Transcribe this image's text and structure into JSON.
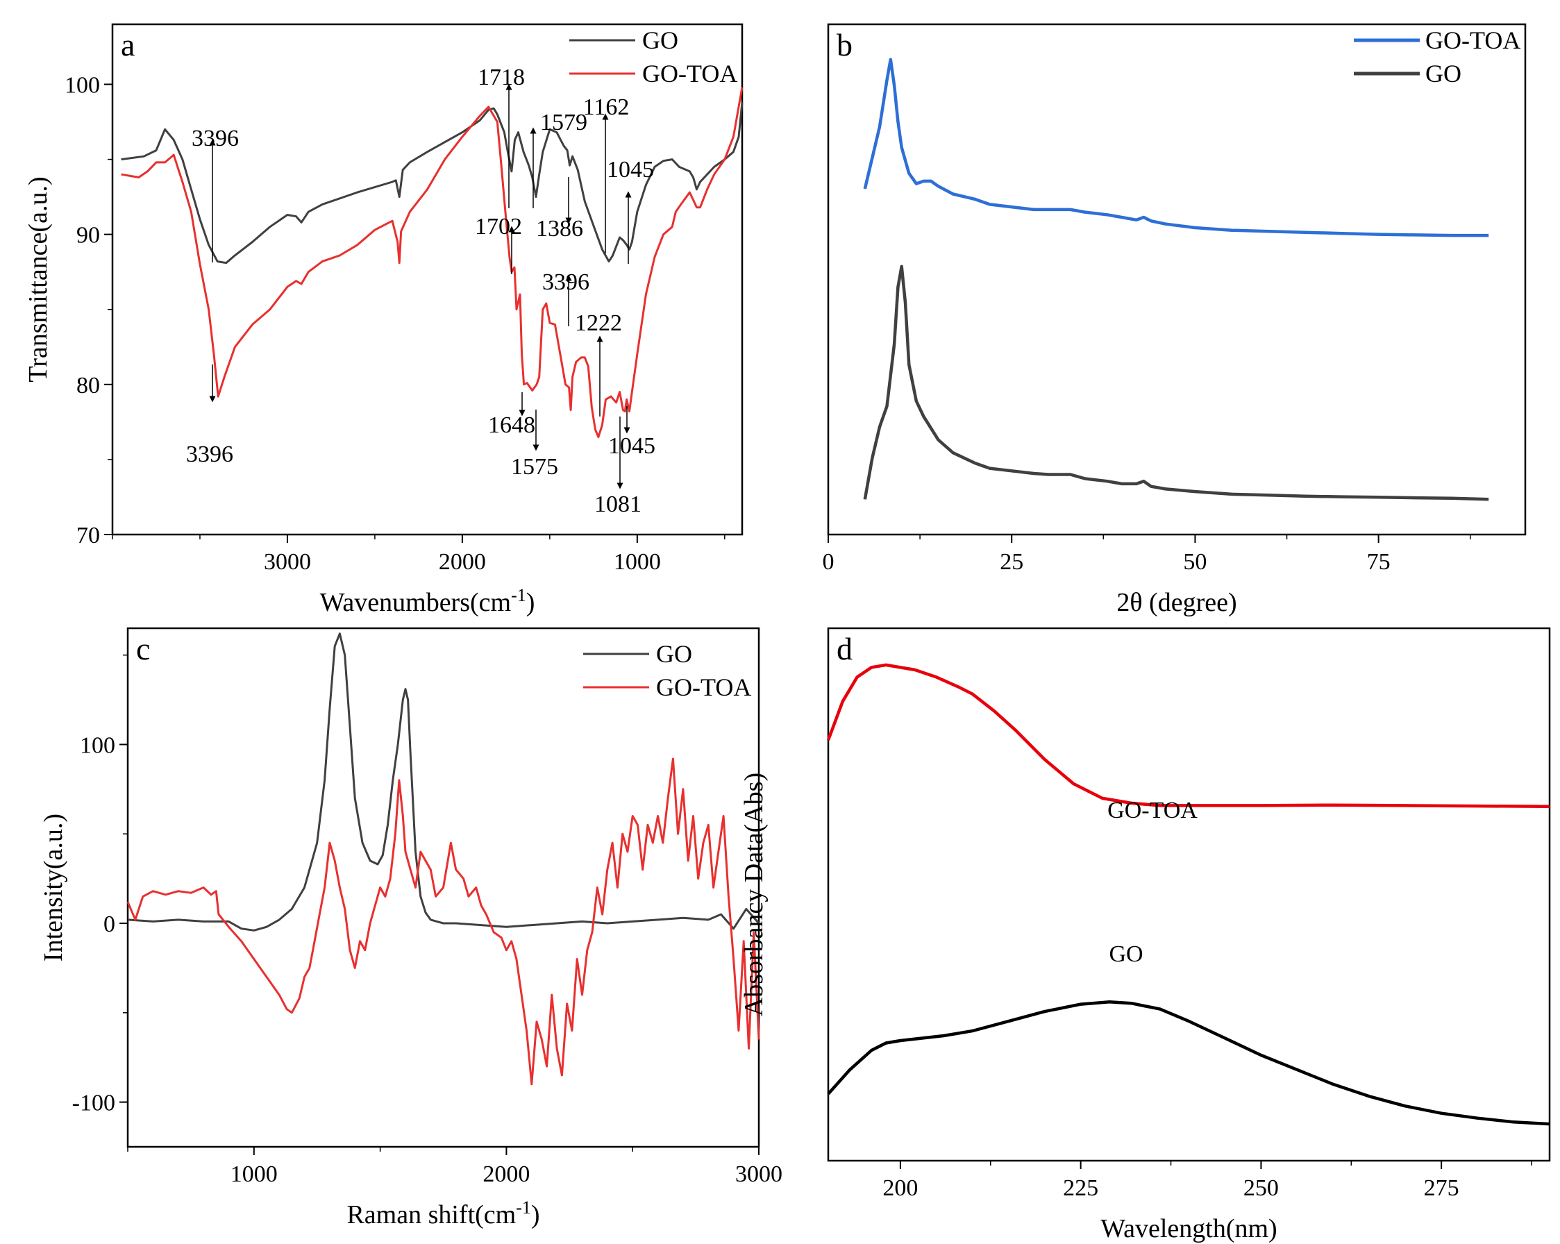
{
  "chart_data": [
    {
      "panel": "a",
      "type": "line",
      "xlabel": "Wavenumbers(cm-1)",
      "ylabel": "Transmittance(a.u.)",
      "xlim": [
        4000,
        400
      ],
      "ylim": [
        70,
        104
      ],
      "x_ticks": [
        3000,
        2000,
        1000
      ],
      "y_ticks": [
        70,
        80,
        90,
        100
      ],
      "legend_position": "top-right",
      "colors": {
        "GO": "#404040",
        "GO-TOA": "#e8302f"
      },
      "series": [
        {
          "name": "GO",
          "x": [
            3950,
            3820,
            3750,
            3700,
            3650,
            3600,
            3550,
            3500,
            3450,
            3400,
            3350,
            3300,
            3200,
            3100,
            3000,
            2950,
            2920,
            2880,
            2800,
            2600,
            2400,
            2380,
            2360,
            2340,
            2300,
            2200,
            2000,
            1900,
            1850,
            1820,
            1800,
            1760,
            1740,
            1718,
            1700,
            1680,
            1650,
            1620,
            1600,
            1579,
            1560,
            1540,
            1500,
            1460,
            1420,
            1400,
            1386,
            1370,
            1340,
            1300,
            1250,
            1200,
            1162,
            1140,
            1100,
            1080,
            1060,
            1045,
            1030,
            1000,
            950,
            900,
            850,
            800,
            760,
            700,
            680,
            660,
            640,
            600,
            560,
            500,
            450,
            420,
            400
          ],
          "values": [
            95,
            95.2,
            95.6,
            97,
            96.3,
            95,
            93,
            91,
            89.3,
            88.2,
            88.1,
            88.6,
            89.5,
            90.5,
            91.3,
            91.2,
            90.8,
            91.5,
            92,
            92.8,
            93.5,
            93.6,
            92.5,
            94.3,
            94.8,
            95.5,
            96.8,
            97.6,
            98.3,
            98.4,
            98,
            96.8,
            95.5,
            94.2,
            96.3,
            96.8,
            95.5,
            94.6,
            93.8,
            92.5,
            94,
            95.5,
            97,
            96.8,
            95.9,
            95.6,
            94.6,
            95.2,
            94.3,
            92.2,
            90.6,
            89,
            88.2,
            88.6,
            89.8,
            89.6,
            89.3,
            89,
            89.5,
            91.5,
            93.3,
            94.5,
            94.9,
            95,
            94.5,
            94.2,
            93.8,
            93,
            93.5,
            94,
            94.5,
            95,
            95.5,
            96.5,
            98.8
          ]
        },
        {
          "name": "GO-TOA",
          "x": [
            3950,
            3850,
            3800,
            3750,
            3700,
            3650,
            3600,
            3550,
            3500,
            3450,
            3420,
            3396,
            3360,
            3300,
            3200,
            3100,
            3000,
            2950,
            2920,
            2880,
            2800,
            2700,
            2600,
            2500,
            2400,
            2370,
            2360,
            2350,
            2300,
            2200,
            2100,
            2000,
            1950,
            1900,
            1850,
            1820,
            1800,
            1780,
            1750,
            1730,
            1718,
            1702,
            1690,
            1670,
            1660,
            1648,
            1630,
            1600,
            1575,
            1560,
            1540,
            1520,
            1500,
            1470,
            1440,
            1410,
            1390,
            1380,
            1370,
            1350,
            1320,
            1300,
            1280,
            1260,
            1240,
            1222,
            1200,
            1180,
            1150,
            1120,
            1100,
            1081,
            1070,
            1060,
            1045,
            1030,
            1000,
            950,
            900,
            850,
            800,
            780,
            750,
            700,
            680,
            660,
            640,
            600,
            560,
            500,
            450,
            420,
            400
          ],
          "values": [
            94,
            93.8,
            94.2,
            94.8,
            94.8,
            95.3,
            93.5,
            91.5,
            88,
            85,
            82,
            79.2,
            80.5,
            82.5,
            84,
            85,
            86.5,
            86.9,
            86.7,
            87.5,
            88.2,
            88.6,
            89.3,
            90.3,
            90.9,
            89.5,
            88.1,
            90.2,
            91.5,
            93,
            95,
            96.5,
            97.2,
            97.9,
            98.5,
            97.9,
            97.5,
            95,
            91,
            88.5,
            87.5,
            87.8,
            85,
            86,
            82,
            80,
            80.1,
            79.6,
            80,
            80.5,
            85,
            85.4,
            84.1,
            84,
            82,
            80,
            79.8,
            78.3,
            80.5,
            81.5,
            81.8,
            81.8,
            81.2,
            78.5,
            77,
            76.5,
            77.3,
            79,
            79.2,
            78.8,
            79.5,
            78.3,
            78.2,
            79,
            78.2,
            79.5,
            82,
            86,
            88.5,
            90,
            90.5,
            91.5,
            92,
            92.8,
            92.3,
            91.8,
            91.8,
            93,
            94,
            95,
            96.5,
            98.5,
            99.8
          ]
        }
      ],
      "annotations": [
        "3396",
        "3396",
        "1718",
        "1702",
        "1579",
        "1386",
        "1162",
        "1045",
        "3396",
        "1222",
        "1648",
        "1575",
        "1045",
        "1081"
      ]
    },
    {
      "panel": "b",
      "type": "line",
      "xlabel": "2θ (degree)",
      "ylabel": "",
      "xlim": [
        0,
        95
      ],
      "x_ticks": [
        0,
        25,
        50,
        75
      ],
      "legend_position": "top-right",
      "colors": {
        "GO-TOA": "#2d6fd6",
        "GO": "#404040"
      },
      "series": [
        {
          "name": "GO-TOA",
          "x": [
            5,
            6,
            7,
            8,
            8.5,
            9,
            9.5,
            10,
            11,
            12,
            13,
            14,
            15,
            17,
            20,
            22,
            25,
            28,
            30,
            32,
            33,
            35,
            38,
            40,
            42,
            43,
            44,
            46,
            50,
            55,
            60,
            65,
            70,
            75,
            80,
            85,
            90
          ],
          "values": [
            0.72,
            0.78,
            0.84,
            0.93,
            0.97,
            0.92,
            0.85,
            0.8,
            0.75,
            0.73,
            0.735,
            0.735,
            0.725,
            0.71,
            0.7,
            0.69,
            0.685,
            0.68,
            0.68,
            0.68,
            0.68,
            0.675,
            0.67,
            0.665,
            0.66,
            0.665,
            0.658,
            0.652,
            0.645,
            0.64,
            0.638,
            0.636,
            0.634,
            0.632,
            0.631,
            0.63,
            0.63
          ]
        },
        {
          "name": "GO",
          "x": [
            5,
            6,
            7,
            8,
            9,
            9.5,
            10,
            10.5,
            11,
            12,
            13,
            15,
            17,
            20,
            22,
            25,
            28,
            30,
            32,
            33,
            35,
            38,
            40,
            42,
            43,
            44,
            46,
            50,
            55,
            60,
            65,
            70,
            75,
            80,
            85,
            90
          ],
          "values": [
            0.12,
            0.2,
            0.26,
            0.3,
            0.42,
            0.53,
            0.57,
            0.5,
            0.38,
            0.31,
            0.28,
            0.235,
            0.21,
            0.19,
            0.18,
            0.175,
            0.17,
            0.168,
            0.168,
            0.168,
            0.16,
            0.155,
            0.15,
            0.15,
            0.155,
            0.145,
            0.14,
            0.135,
            0.13,
            0.128,
            0.126,
            0.125,
            0.124,
            0.123,
            0.122,
            0.12
          ]
        }
      ]
    },
    {
      "panel": "c",
      "type": "line",
      "xlabel": "Raman shift(cm-1)",
      "ylabel": "Intensity(a.u.)",
      "xlim": [
        500,
        3000
      ],
      "ylim": [
        -125,
        165
      ],
      "x_ticks": [
        1000,
        2000,
        3000
      ],
      "y_ticks": [
        -100,
        0,
        100
      ],
      "legend_position": "top-right",
      "colors": {
        "GO": "#404040",
        "GO-TOA": "#e8302f"
      },
      "series": [
        {
          "name": "GO",
          "x": [
            500,
            600,
            700,
            800,
            900,
            950,
            1000,
            1050,
            1100,
            1150,
            1200,
            1250,
            1280,
            1300,
            1320,
            1340,
            1360,
            1380,
            1400,
            1430,
            1460,
            1490,
            1510,
            1530,
            1550,
            1570,
            1590,
            1600,
            1610,
            1620,
            1640,
            1660,
            1680,
            1700,
            1750,
            1800,
            1900,
            2000,
            2100,
            2200,
            2300,
            2400,
            2500,
            2600,
            2700,
            2800,
            2850,
            2900,
            2950,
            3000
          ],
          "values": [
            2,
            1,
            2,
            1,
            1,
            -3,
            -4,
            -2,
            2,
            8,
            20,
            45,
            80,
            120,
            155,
            162,
            150,
            110,
            70,
            45,
            35,
            33,
            38,
            55,
            80,
            100,
            125,
            131,
            125,
            95,
            40,
            15,
            6,
            2,
            0,
            0,
            -1,
            -2,
            -1,
            0,
            1,
            0,
            1,
            2,
            3,
            2,
            5,
            -3,
            8,
            0
          ]
        },
        {
          "name": "GO-TOA",
          "x": [
            500,
            530,
            560,
            600,
            650,
            700,
            750,
            800,
            830,
            850,
            860,
            900,
            950,
            1000,
            1050,
            1100,
            1130,
            1150,
            1180,
            1200,
            1220,
            1240,
            1260,
            1280,
            1300,
            1320,
            1340,
            1360,
            1380,
            1400,
            1420,
            1440,
            1460,
            1480,
            1500,
            1520,
            1540,
            1560,
            1575,
            1590,
            1600,
            1620,
            1640,
            1660,
            1680,
            1700,
            1720,
            1750,
            1780,
            1800,
            1830,
            1850,
            1880,
            1900,
            1920,
            1950,
            1980,
            2000,
            2020,
            2040,
            2060,
            2080,
            2100,
            2120,
            2140,
            2160,
            2180,
            2200,
            2220,
            2240,
            2260,
            2280,
            2300,
            2320,
            2340,
            2360,
            2380,
            2400,
            2420,
            2440,
            2460,
            2480,
            2500,
            2520,
            2540,
            2560,
            2580,
            2600,
            2620,
            2640,
            2660,
            2680,
            2700,
            2720,
            2740,
            2760,
            2780,
            2800,
            2820,
            2840,
            2860,
            2880,
            2900,
            2920,
            2940,
            2960,
            2980,
            3000
          ],
          "values": [
            12,
            2,
            15,
            18,
            16,
            18,
            17,
            20,
            16,
            18,
            5,
            -2,
            -10,
            -20,
            -30,
            -40,
            -48,
            -50,
            -42,
            -30,
            -25,
            -10,
            5,
            20,
            45,
            35,
            20,
            8,
            -15,
            -25,
            -10,
            -15,
            0,
            10,
            20,
            15,
            25,
            50,
            80,
            60,
            40,
            30,
            20,
            40,
            35,
            30,
            15,
            20,
            45,
            30,
            25,
            15,
            20,
            10,
            5,
            -5,
            -8,
            -15,
            -10,
            -20,
            -40,
            -60,
            -90,
            -55,
            -65,
            -80,
            -40,
            -70,
            -85,
            -45,
            -60,
            -20,
            -40,
            -15,
            -5,
            20,
            5,
            30,
            45,
            20,
            50,
            40,
            60,
            55,
            30,
            55,
            45,
            60,
            45,
            70,
            92,
            50,
            75,
            35,
            60,
            25,
            45,
            55,
            20,
            40,
            60,
            15,
            -20,
            -60,
            -10,
            -70,
            -5,
            -65
          ]
        }
      ]
    },
    {
      "panel": "d",
      "type": "line",
      "xlabel": "Wavelength(nm)",
      "ylabel": "Absorbancy Data(Abs)",
      "xlim": [
        190,
        290
      ],
      "x_ticks": [
        200,
        225,
        250,
        275
      ],
      "colors": {
        "GO-TOA": "#e8000b",
        "GO": "#000000"
      },
      "series": [
        {
          "name": "GO-TOA",
          "x": [
            190,
            192,
            194,
            196,
            198,
            200,
            202,
            205,
            208,
            210,
            213,
            216,
            220,
            224,
            228,
            232,
            236,
            240,
            250,
            260,
            270,
            280,
            290
          ],
          "values": [
            0.78,
            0.86,
            0.91,
            0.93,
            0.935,
            0.93,
            0.925,
            0.91,
            0.89,
            0.875,
            0.84,
            0.8,
            0.74,
            0.69,
            0.66,
            0.65,
            0.645,
            0.645,
            0.645,
            0.646,
            0.645,
            0.644,
            0.643
          ]
        },
        {
          "name": "GO",
          "x": [
            190,
            193,
            196,
            198,
            200,
            203,
            206,
            210,
            215,
            220,
            225,
            229,
            232,
            236,
            240,
            245,
            250,
            255,
            260,
            265,
            270,
            275,
            280,
            285,
            290
          ],
          "values": [
            0.05,
            0.1,
            0.14,
            0.155,
            0.16,
            0.165,
            0.17,
            0.18,
            0.2,
            0.22,
            0.235,
            0.24,
            0.237,
            0.225,
            0.2,
            0.165,
            0.13,
            0.1,
            0.07,
            0.045,
            0.025,
            0.01,
            0.0,
            -0.008,
            -0.012
          ]
        }
      ],
      "annotations": [
        "GO-TOA",
        "GO"
      ]
    }
  ]
}
